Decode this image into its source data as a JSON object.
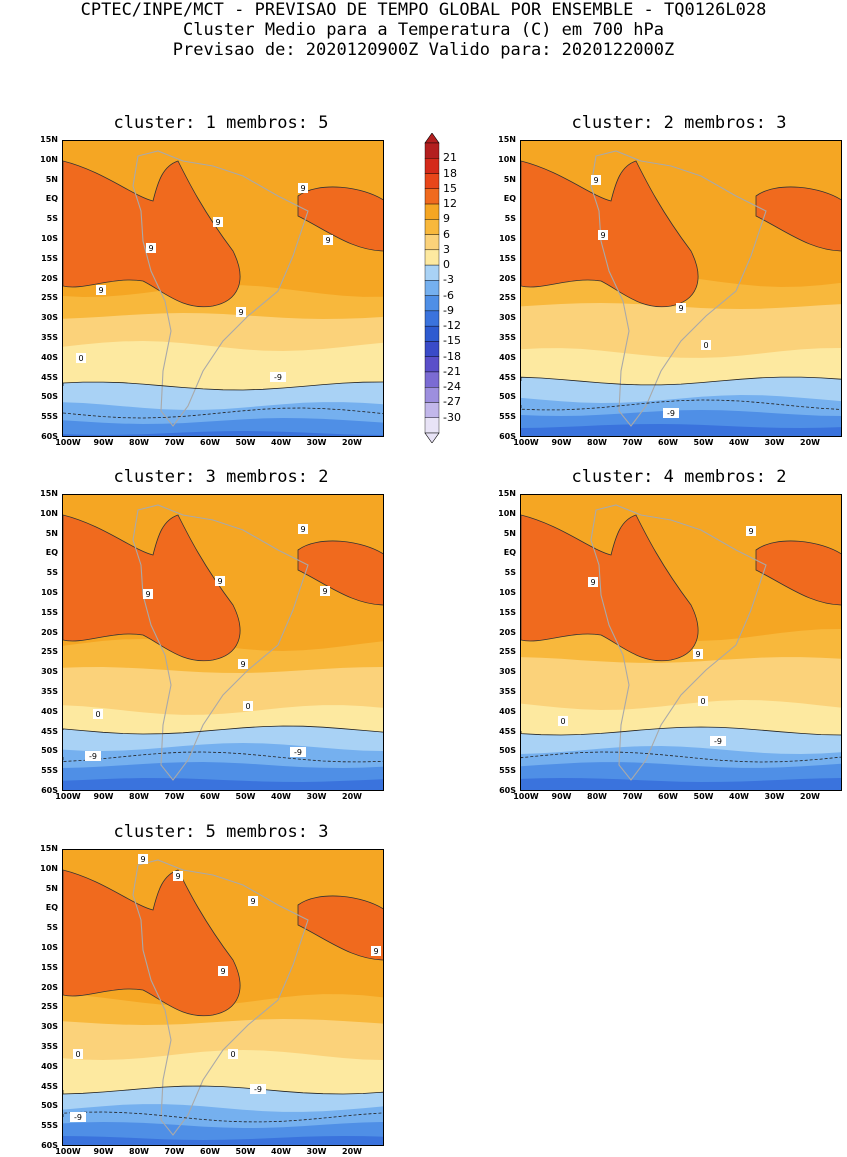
{
  "header": {
    "line1": "CPTEC/INPE/MCT - PREVISAO DE TEMPO GLOBAL POR ENSEMBLE - TQ0126L028",
    "line2": "Cluster Medio para a Temperatura (C) em 700 hPa",
    "line3": "Previsao de: 2020120900Z   Valido para: 2020122000Z"
  },
  "panels": [
    {
      "title": "cluster: 1  membros: 5",
      "labels": [
        "9",
        "9",
        "9",
        "9",
        "9",
        "9",
        "0",
        "-9"
      ]
    },
    {
      "title": "cluster: 2  membros: 3",
      "labels": [
        "9",
        "9",
        "9",
        "0",
        "-9"
      ]
    },
    {
      "title": "cluster: 3  membros: 2",
      "labels": [
        "9",
        "9",
        "9",
        "9",
        "9",
        "0",
        "0",
        "-9",
        "-9"
      ]
    },
    {
      "title": "cluster: 4  membros: 2",
      "labels": [
        "9",
        "9",
        "9",
        "0",
        "0",
        "-9"
      ]
    },
    {
      "title": "cluster: 5  membros: 3",
      "labels": [
        "9",
        "9",
        "9",
        "9",
        "9",
        "0",
        "0",
        "-9",
        "-9"
      ]
    }
  ],
  "y_ticks": [
    "15N",
    "10N",
    "5N",
    "EQ",
    "5S",
    "10S",
    "15S",
    "20S",
    "25S",
    "30S",
    "35S",
    "40S",
    "45S",
    "50S",
    "55S",
    "60S"
  ],
  "x_ticks": [
    "100W",
    "90W",
    "80W",
    "70W",
    "60W",
    "50W",
    "40W",
    "30W",
    "20W"
  ],
  "colorbar": {
    "labels": [
      "21",
      "18",
      "15",
      "12",
      "9",
      "6",
      "3",
      "0",
      "-3",
      "-6",
      "-9",
      "-12",
      "-15",
      "-18",
      "-21",
      "-24",
      "-27",
      "-30"
    ],
    "colors": [
      "#b31f1f",
      "#d42a1a",
      "#e8461a",
      "#f06a1e",
      "#f5a623",
      "#f8b83c",
      "#fbd27a",
      "#fde9a0",
      "#a9d2f5",
      "#75b0ef",
      "#4f8fe6",
      "#3a73dd",
      "#2e5bd0",
      "#3a4bc8",
      "#5a4fc9",
      "#7b6bd3",
      "#9d8fde",
      "#c2b7ea",
      "#e8e3f6"
    ],
    "unit": "C"
  }
}
